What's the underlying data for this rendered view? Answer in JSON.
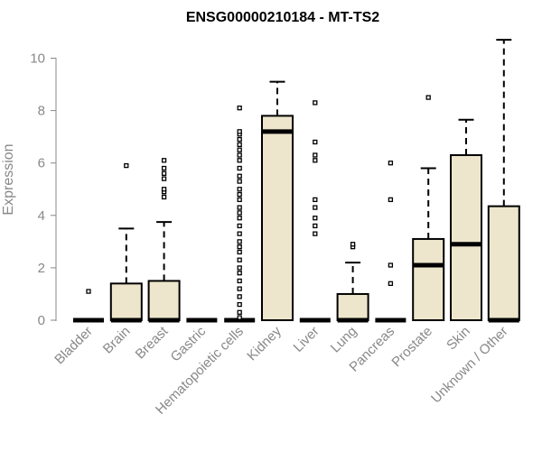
{
  "chart_data": {
    "type": "box",
    "title": "ENSG00000210184 - MT-TS2",
    "ylabel": "Expression",
    "xlabel": "",
    "ylim": [
      0,
      10.7
    ],
    "yticks": [
      0,
      2,
      4,
      6,
      8,
      10
    ],
    "box_fill": "#ede6cc",
    "box_stroke": "#000000",
    "categories": [
      "Bladder",
      "Brain",
      "Breast",
      "Gastric",
      "Hematopoietic cells",
      "Kidney",
      "Liver",
      "Lung",
      "Pancreas",
      "Prostate",
      "Skin",
      "Unknown / Other"
    ],
    "boxes": [
      {
        "name": "Bladder",
        "min": 0,
        "q1": 0,
        "median": 0,
        "q3": 0,
        "max": 0,
        "outliers": [
          1.1
        ]
      },
      {
        "name": "Brain",
        "min": 0,
        "q1": 0,
        "median": 0,
        "q3": 1.4,
        "max": 3.5,
        "outliers": [
          5.9
        ]
      },
      {
        "name": "Breast",
        "min": 0,
        "q1": 0,
        "median": 0,
        "q3": 1.5,
        "max": 3.75,
        "outliers": [
          4.7,
          4.9,
          5.0,
          5.4,
          5.6,
          5.8,
          6.1
        ]
      },
      {
        "name": "Gastric",
        "min": 0,
        "q1": 0,
        "median": 0,
        "q3": 0,
        "max": 0,
        "outliers": []
      },
      {
        "name": "Hematopoietic cells",
        "min": 0,
        "q1": 0,
        "median": 0,
        "q3": 0,
        "max": 0,
        "outliers": [
          0.1,
          0.3,
          0.6,
          0.9,
          1.2,
          1.5,
          1.8,
          2.0,
          2.3,
          2.6,
          2.8,
          3.0,
          3.3,
          3.6,
          3.9,
          4.1,
          4.3,
          4.6,
          4.8,
          5.0,
          5.3,
          5.5,
          5.8,
          6.1,
          6.3,
          6.5,
          6.7,
          6.9,
          7.1,
          7.2,
          8.1
        ]
      },
      {
        "name": "Kidney",
        "min": 0,
        "q1": 0,
        "median": 7.2,
        "q3": 7.8,
        "max": 9.1,
        "outliers": []
      },
      {
        "name": "Liver",
        "min": 0,
        "q1": 0,
        "median": 0,
        "q3": 0,
        "max": 0,
        "outliers": [
          3.3,
          3.6,
          3.9,
          4.3,
          4.6,
          6.1,
          6.3,
          6.8,
          8.3
        ]
      },
      {
        "name": "Lung",
        "min": 0,
        "q1": 0,
        "median": 0,
        "q3": 1.0,
        "max": 2.2,
        "outliers": [
          2.8,
          2.9
        ]
      },
      {
        "name": "Pancreas",
        "min": 0,
        "q1": 0,
        "median": 0,
        "q3": 0,
        "max": 0,
        "outliers": [
          1.4,
          2.1,
          4.6,
          6.0
        ]
      },
      {
        "name": "Prostate",
        "min": 0,
        "q1": 0,
        "median": 2.1,
        "q3": 3.1,
        "max": 5.8,
        "outliers": [
          8.5
        ]
      },
      {
        "name": "Skin",
        "min": 0,
        "q1": 0,
        "median": 2.9,
        "q3": 6.3,
        "max": 7.65,
        "outliers": []
      },
      {
        "name": "Unknown / Other",
        "min": 0,
        "q1": 0,
        "median": 0,
        "q3": 4.35,
        "max": 10.7,
        "outliers": []
      }
    ]
  }
}
